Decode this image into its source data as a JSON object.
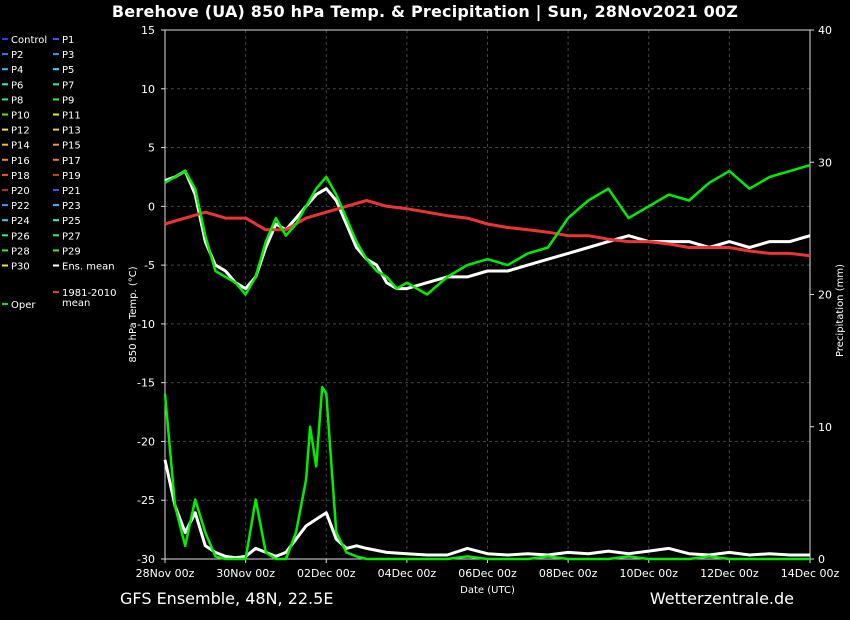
{
  "title": "Berehove  (UA)  850 hPa Temp. & Precipitation | Sun, 28Nov2021 00Z",
  "footer_left": "GFS Ensemble, 48N, 22.5E",
  "footer_right": "Wetterzentrale.de",
  "chart_data": {
    "type": "line",
    "title": "Berehove  (UA)  850 hPa Temp. & Precipitation | Sun, 28Nov2021 00Z",
    "xlabel": "Date (UTC)",
    "ylabel_left": "850 hPa Temp. (°C)",
    "ylabel_right": "Precipitation (mm)",
    "x_ticks": [
      "28Nov 00z",
      "30Nov 00z",
      "02Dec 00z",
      "04Dec 00z",
      "06Dec 00z",
      "08Dec 00z",
      "10Dec 00z",
      "12Dec 00z",
      "14Dec 00z"
    ],
    "x_range_days": [
      0,
      16
    ],
    "temp_ylim": [
      -30,
      15
    ],
    "temp_ticks": [
      15,
      10,
      5,
      0,
      -5,
      -10,
      -15,
      -20,
      -25,
      -30
    ],
    "precip_ylim": [
      0,
      40
    ],
    "precip_ticks": [
      40,
      30,
      20,
      10,
      0
    ],
    "grid": true,
    "legend": {
      "placement": "left-outside",
      "entries": [
        {
          "label": "Control",
          "color": "#3333ff"
        },
        {
          "label": "P1",
          "color": "#3355ff"
        },
        {
          "label": "P2",
          "color": "#3377ff"
        },
        {
          "label": "P3",
          "color": "#3399ff"
        },
        {
          "label": "P4",
          "color": "#33bbff"
        },
        {
          "label": "P5",
          "color": "#33ddff"
        },
        {
          "label": "P6",
          "color": "#33eecc"
        },
        {
          "label": "P7",
          "color": "#33ee99"
        },
        {
          "label": "P8",
          "color": "#33ee66"
        },
        {
          "label": "P9",
          "color": "#33ee33"
        },
        {
          "label": "P10",
          "color": "#55ee00"
        },
        {
          "label": "P11",
          "color": "#eeee00"
        },
        {
          "label": "P12",
          "color": "#eedd55"
        },
        {
          "label": "P13",
          "color": "#eecc33"
        },
        {
          "label": "P14",
          "color": "#eebb33"
        },
        {
          "label": "P15",
          "color": "#ee9933"
        },
        {
          "label": "P16",
          "color": "#ee8855"
        },
        {
          "label": "P17",
          "color": "#ee7733"
        },
        {
          "label": "P18",
          "color": "#ee5533"
        },
        {
          "label": "P19",
          "color": "#cc4422"
        },
        {
          "label": "P20",
          "color": "#cc2222"
        },
        {
          "label": "P21",
          "color": "#3355ff"
        },
        {
          "label": "P22",
          "color": "#3399ff"
        },
        {
          "label": "P23",
          "color": "#33bbff"
        },
        {
          "label": "P24",
          "color": "#33ccff"
        },
        {
          "label": "P25",
          "color": "#33eedd"
        },
        {
          "label": "P26",
          "color": "#33ee99"
        },
        {
          "label": "P27",
          "color": "#33ee77"
        },
        {
          "label": "P28",
          "color": "#33ee44"
        },
        {
          "label": "P29",
          "color": "#44ee22"
        },
        {
          "label": "P30",
          "color": "#eeee22"
        },
        {
          "label": "Ens. mean",
          "color": "#ffffff"
        },
        {
          "label": "1981-2010\nmean",
          "color": "#ee3333"
        },
        {
          "label": "Oper",
          "color": "#00ee00"
        }
      ]
    },
    "series": [
      {
        "name": "Ens. mean",
        "kind": "temp",
        "color": "#ffffff",
        "x": [
          0,
          0.25,
          0.5,
          0.75,
          1,
          1.25,
          1.5,
          1.75,
          2,
          2.25,
          2.5,
          2.75,
          3,
          3.25,
          3.5,
          3.75,
          4,
          4.25,
          4.5,
          4.75,
          5,
          5.25,
          5.5,
          5.75,
          6,
          6.5,
          7,
          7.5,
          8,
          8.5,
          9,
          9.5,
          10,
          10.5,
          11,
          11.5,
          12,
          12.5,
          13,
          13.5,
          14,
          14.5,
          15,
          15.5,
          16
        ],
        "y": [
          2.2,
          2.5,
          3.0,
          1.0,
          -3.0,
          -5.0,
          -5.5,
          -6.5,
          -7.0,
          -6.0,
          -3.5,
          -1.5,
          -2.0,
          -1.0,
          0.0,
          1.0,
          1.5,
          0.5,
          -1.5,
          -3.5,
          -4.5,
          -5.0,
          -6.5,
          -7.0,
          -7.0,
          -6.5,
          -6.0,
          -6.0,
          -5.5,
          -5.5,
          -5.0,
          -4.5,
          -4.0,
          -3.5,
          -3.0,
          -2.5,
          -3.0,
          -3.0,
          -3.0,
          -3.5,
          -3.0,
          -3.5,
          -3.0,
          -3.0,
          -2.5
        ]
      },
      {
        "name": "1981-2010 mean",
        "kind": "temp",
        "color": "#ee3333",
        "x": [
          0,
          0.5,
          1,
          1.5,
          2,
          2.5,
          3,
          3.5,
          4,
          4.5,
          5,
          5.5,
          6,
          6.5,
          7,
          7.5,
          8,
          8.5,
          9,
          9.5,
          10,
          10.5,
          11,
          11.5,
          12,
          12.5,
          13,
          13.5,
          14,
          14.5,
          15,
          15.5,
          16
        ],
        "y": [
          -1.5,
          -1.0,
          -0.5,
          -1.0,
          -1.0,
          -2.0,
          -2.0,
          -1.0,
          -0.5,
          0.0,
          0.5,
          0.0,
          -0.2,
          -0.5,
          -0.8,
          -1.0,
          -1.5,
          -1.8,
          -2.0,
          -2.2,
          -2.5,
          -2.5,
          -2.8,
          -3.0,
          -3.0,
          -3.2,
          -3.5,
          -3.5,
          -3.5,
          -3.8,
          -4.0,
          -4.0,
          -4.2
        ]
      },
      {
        "name": "Oper",
        "kind": "temp",
        "color": "#00ee00",
        "x": [
          0,
          0.25,
          0.5,
          0.75,
          1,
          1.25,
          1.5,
          1.75,
          2,
          2.25,
          2.5,
          2.75,
          3,
          3.25,
          3.5,
          3.75,
          4,
          4.25,
          4.5,
          4.75,
          5,
          5.25,
          5.5,
          5.75,
          6,
          6.5,
          7,
          7.5,
          8,
          8.5,
          9,
          9.5,
          10,
          10.5,
          11,
          11.5,
          12,
          12.5,
          13,
          13.5,
          14,
          14.5,
          15,
          15.5,
          16
        ],
        "y": [
          2.0,
          2.5,
          3.0,
          1.5,
          -2.5,
          -5.5,
          -6.0,
          -6.5,
          -7.5,
          -6.0,
          -3.0,
          -1.0,
          -2.5,
          -1.5,
          0.0,
          1.5,
          2.5,
          1.0,
          -1.0,
          -3.0,
          -4.5,
          -5.5,
          -6.0,
          -7.0,
          -6.5,
          -7.5,
          -6.0,
          -5.0,
          -4.5,
          -5.0,
          -4.0,
          -3.5,
          -1.0,
          0.5,
          1.5,
          -1.0,
          0.0,
          1.0,
          0.5,
          2.0,
          3.0,
          1.5,
          2.5,
          3.0,
          3.5
        ]
      },
      {
        "name": "Ens. mean",
        "kind": "precip",
        "color": "#ffffff",
        "x": [
          0,
          0.25,
          0.5,
          0.75,
          1,
          1.25,
          1.5,
          1.75,
          2,
          2.25,
          2.5,
          2.75,
          3,
          3.25,
          3.5,
          3.75,
          4,
          4.25,
          4.5,
          4.75,
          5,
          5.5,
          6,
          6.5,
          7,
          7.5,
          8,
          8.5,
          9,
          9.5,
          10,
          10.5,
          11,
          11.5,
          12,
          12.5,
          13,
          13.5,
          14,
          14.5,
          15,
          15.5,
          16
        ],
        "y": [
          7.5,
          4.0,
          2.0,
          3.5,
          1.0,
          0.5,
          0.2,
          0.1,
          0.2,
          0.8,
          0.5,
          0.2,
          0.5,
          1.5,
          2.5,
          3.0,
          3.5,
          1.5,
          0.8,
          1.0,
          0.8,
          0.5,
          0.4,
          0.3,
          0.3,
          0.8,
          0.4,
          0.3,
          0.4,
          0.3,
          0.5,
          0.4,
          0.6,
          0.4,
          0.6,
          0.8,
          0.4,
          0.3,
          0.5,
          0.3,
          0.4,
          0.3,
          0.3
        ]
      },
      {
        "name": "Oper",
        "kind": "precip",
        "color": "#00ee00",
        "x": [
          0,
          0.25,
          0.5,
          0.75,
          1,
          1.25,
          1.5,
          1.75,
          2,
          2.25,
          2.5,
          2.75,
          3,
          3.25,
          3.5,
          3.6,
          3.75,
          3.9,
          4,
          4.25,
          4.5,
          4.75,
          5,
          5.5,
          6,
          6.5,
          7,
          7.5,
          8,
          8.5,
          9,
          9.5,
          10,
          10.5,
          11,
          11.5,
          12,
          12.5,
          13,
          13.5,
          14,
          14.5,
          15,
          15.5,
          16
        ],
        "y": [
          12.5,
          4.0,
          1.0,
          4.5,
          2.0,
          0.2,
          0.0,
          0.0,
          0.0,
          4.5,
          0.5,
          0.0,
          0.0,
          2.0,
          6.0,
          10.0,
          7.0,
          13.0,
          12.5,
          2.0,
          0.5,
          0.2,
          0.0,
          0.0,
          0.0,
          0.0,
          0.0,
          0.2,
          0.0,
          0.0,
          0.0,
          0.2,
          0.0,
          0.0,
          0.0,
          0.2,
          0.0,
          0.0,
          0.0,
          0.2,
          0.0,
          0.0,
          0.0,
          0.0,
          0.0
        ]
      }
    ]
  }
}
